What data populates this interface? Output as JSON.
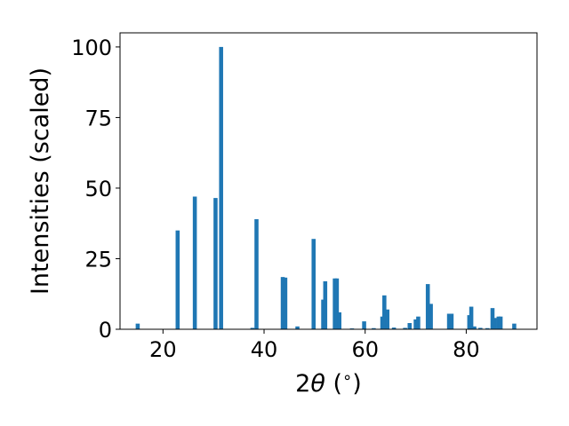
{
  "chart_data": {
    "type": "bar",
    "title": "",
    "xlabel_parts": [
      "2",
      "θ",
      " (",
      "∘",
      ")"
    ],
    "ylabel": "Intensities (scaled)",
    "xlim": [
      11.5,
      94.0
    ],
    "ylim": [
      0,
      105
    ],
    "xticks": [
      20,
      40,
      60,
      80
    ],
    "yticks": [
      0,
      25,
      50,
      75,
      100
    ],
    "bar_color": "#1f77b4",
    "bar_width_deg": 0.8,
    "x": [
      15.0,
      22.9,
      26.3,
      30.4,
      31.5,
      37.7,
      38.5,
      43.7,
      44.2,
      46.6,
      49.8,
      51.7,
      52.1,
      54.0,
      54.4,
      54.9,
      57.4,
      59.8,
      61.7,
      63.4,
      63.8,
      64.4,
      65.7,
      67.9,
      68.8,
      70.0,
      70.5,
      72.4,
      73.0,
      76.6,
      77.1,
      80.6,
      81.0,
      81.6,
      82.8,
      84.2,
      85.2,
      85.6,
      86.4,
      86.8,
      89.5
    ],
    "values": [
      2.0,
      35.0,
      47.0,
      46.5,
      100.0,
      0.5,
      39.0,
      18.5,
      18.3,
      1.0,
      32.0,
      10.5,
      17.0,
      18.0,
      18.0,
      6.0,
      0.3,
      2.8,
      0.4,
      4.5,
      12.0,
      7.0,
      0.6,
      0.5,
      2.2,
      3.5,
      4.5,
      16.0,
      9.0,
      5.5,
      5.5,
      5.0,
      8.0,
      1.0,
      0.5,
      0.4,
      7.5,
      4.0,
      4.5,
      4.5,
      2.0
    ]
  }
}
